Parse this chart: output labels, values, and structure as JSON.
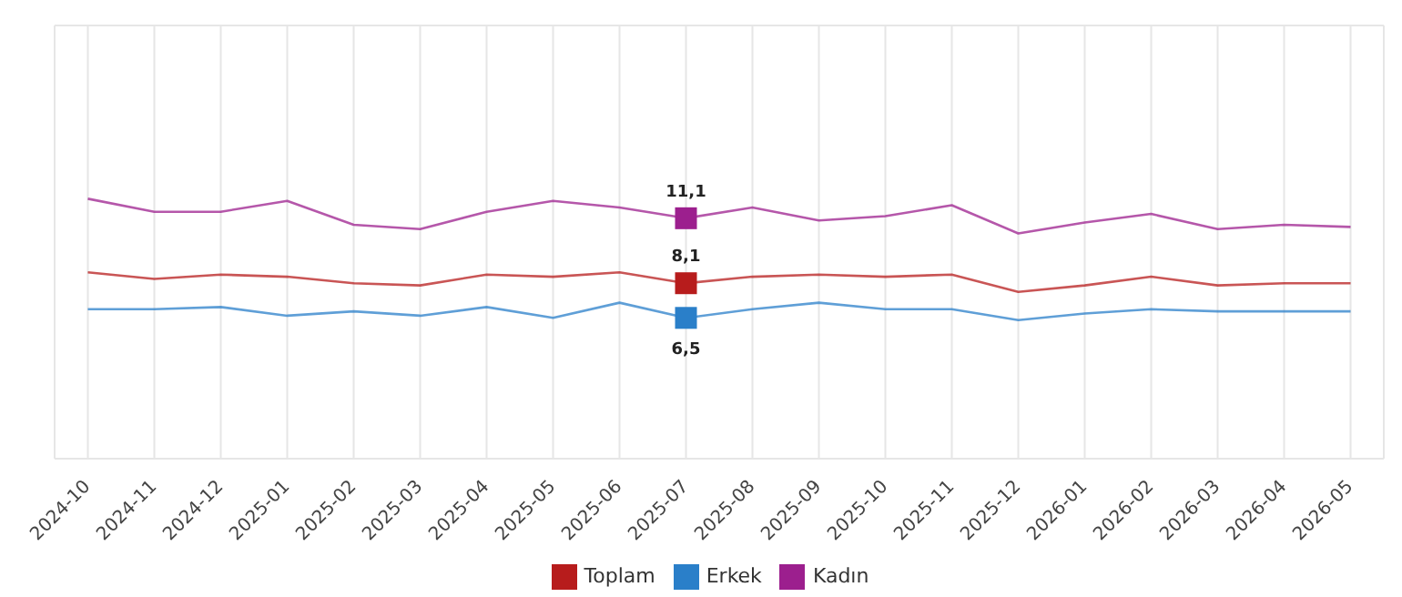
{
  "chart_data": {
    "type": "line",
    "categories": [
      "2024-10",
      "2024-11",
      "2024-12",
      "2025-01",
      "2025-02",
      "2025-03",
      "2025-04",
      "2025-05",
      "2025-06",
      "2025-07",
      "2025-08",
      "2025-09",
      "2025-10",
      "2025-11",
      "2025-12",
      "2026-01",
      "2026-02",
      "2026-03",
      "2026-04",
      "2026-05"
    ],
    "series": [
      {
        "name": "Toplam",
        "color": "#b71c1c",
        "values": [
          8.6,
          8.3,
          8.5,
          8.4,
          8.1,
          8.0,
          8.5,
          8.4,
          8.6,
          8.1,
          8.4,
          8.5,
          8.4,
          8.5,
          7.7,
          8.0,
          8.4,
          8.0,
          8.1,
          8.1
        ],
        "value_labels": [
          null,
          null,
          null,
          null,
          null,
          null,
          null,
          null,
          null,
          "8,1",
          null,
          null,
          null,
          null,
          null,
          null,
          null,
          null,
          null,
          null
        ]
      },
      {
        "name": "Erkek",
        "color": "#2a7fc9",
        "values": [
          6.9,
          6.9,
          7.0,
          6.6,
          6.8,
          6.6,
          7.0,
          6.5,
          7.2,
          6.5,
          6.9,
          7.2,
          6.9,
          6.9,
          6.4,
          6.7,
          6.9,
          6.8,
          6.8,
          6.8
        ],
        "value_labels": [
          null,
          null,
          null,
          null,
          null,
          null,
          null,
          null,
          null,
          "6,5",
          null,
          null,
          null,
          null,
          null,
          null,
          null,
          null,
          null,
          null
        ]
      },
      {
        "name": "Kadın",
        "color": "#9c1f8e",
        "values": [
          12.0,
          11.4,
          11.4,
          11.9,
          10.8,
          10.6,
          11.4,
          11.9,
          11.6,
          11.1,
          11.6,
          11.0,
          11.2,
          11.7,
          10.4,
          10.9,
          11.3,
          10.6,
          10.8,
          10.7
        ],
        "value_labels": [
          null,
          null,
          null,
          null,
          null,
          null,
          null,
          null,
          null,
          "11,1",
          null,
          null,
          null,
          null,
          null,
          null,
          null,
          null,
          null,
          null
        ]
      }
    ],
    "ylim": [
      0,
      20
    ],
    "tick_labels": "x",
    "grid": true,
    "legend": "bottom"
  }
}
